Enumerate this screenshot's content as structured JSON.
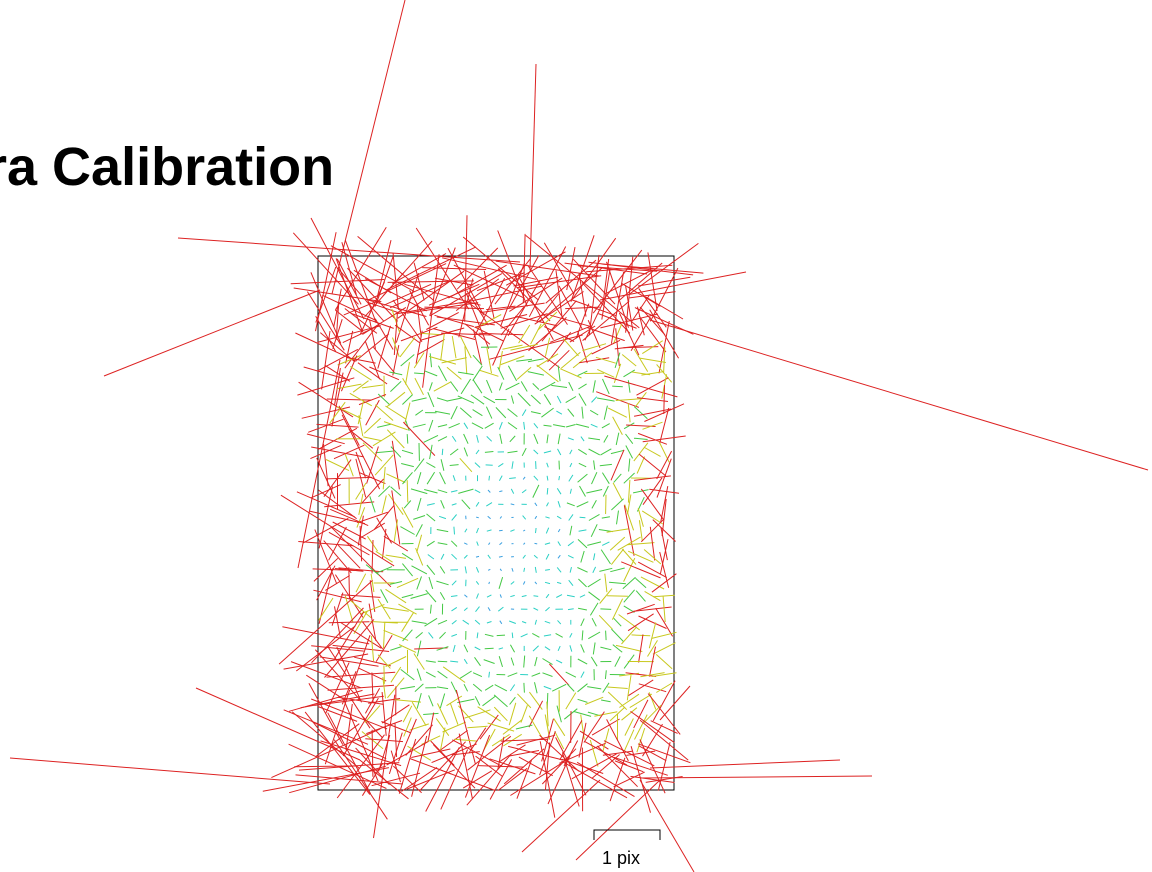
{
  "title": "ra Calibration",
  "chart_data": {
    "type": "vector-field",
    "title": "ra Calibration",
    "xlabel": "",
    "ylabel": "",
    "grid": false,
    "scale_bar": {
      "label": "1 pix",
      "length_pix": 1
    },
    "colors": {
      "frame": "#000000",
      "small": "#3aa0e0",
      "small_mid": "#2bd0c4",
      "medium": "#44c844",
      "large": "#c8c81e",
      "largest": "#dd2222"
    },
    "field": {
      "x_range": [
        0,
        1
      ],
      "y_range": [
        0,
        1
      ],
      "rows": 40,
      "cols": 30,
      "note_visible": false
    }
  }
}
